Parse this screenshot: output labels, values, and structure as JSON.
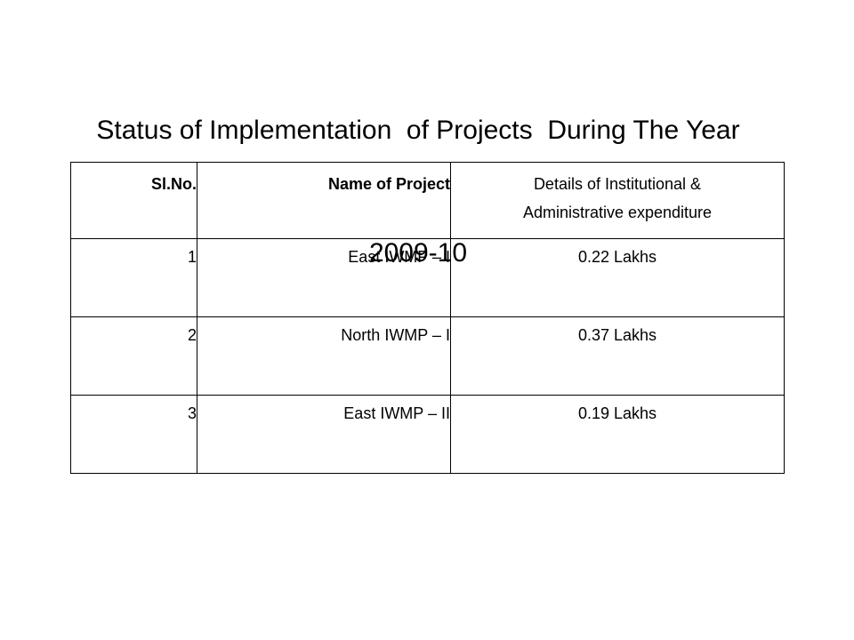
{
  "title": {
    "line1": "Status of Implementation  of Projects  During The Year",
    "line2": "2009-10"
  },
  "table": {
    "headers": {
      "sl_no": "Sl.No.",
      "name": "Name of Project",
      "details_line1": "Details of Institutional &",
      "details_line2": "Administrative expenditure"
    },
    "rows": [
      {
        "sl_no": "1",
        "name": "East  IWMP – I",
        "details": "0.22 Lakhs"
      },
      {
        "sl_no": "2",
        "name": "North IWMP – I",
        "details": "0.37 Lakhs"
      },
      {
        "sl_no": "3",
        "name": "East IWMP – II",
        "details": "0.19 Lakhs"
      }
    ]
  }
}
